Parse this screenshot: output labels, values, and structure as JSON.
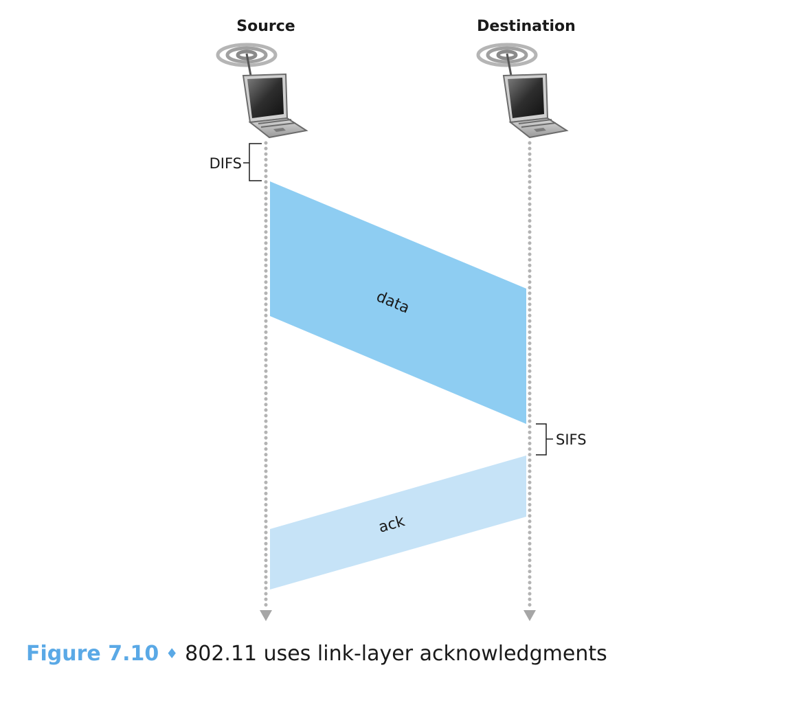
{
  "nodes": {
    "source": {
      "label": "Source"
    },
    "destination": {
      "label": "Destination"
    }
  },
  "intervals": {
    "difs": "DIFS",
    "sifs": "SIFS"
  },
  "frames": {
    "data": {
      "label": "data",
      "color": "#8ecdf2"
    },
    "ack": {
      "label": "ack",
      "color": "#c6e3f7"
    }
  },
  "caption": {
    "figure_number": "Figure 7.10",
    "separator": "♦",
    "text": "802.11 uses link-layer acknowledgments",
    "accent_color": "#5aa9e6"
  },
  "icons": [
    "laptop-icon",
    "wireless-signal-icon"
  ]
}
